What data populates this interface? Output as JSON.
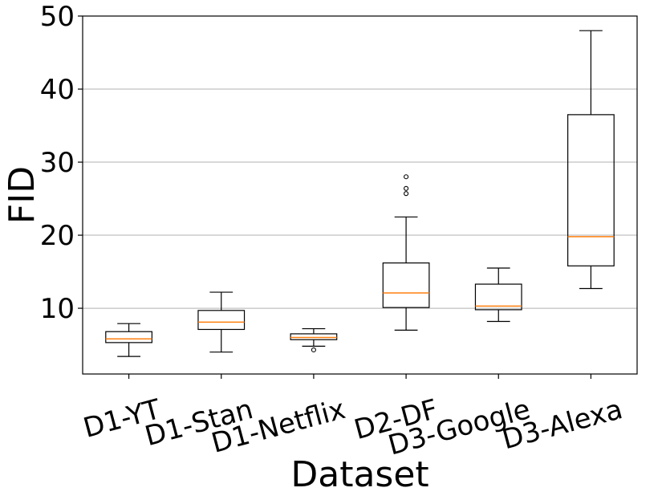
{
  "chart_data": {
    "type": "box",
    "title": "",
    "xlabel": "Dataset",
    "ylabel": "FID",
    "categories": [
      "D1-YT",
      "D1-Stan",
      "D1-Netflix",
      "D2-DF",
      "D3-Google",
      "D3-Alexa"
    ],
    "ylim": [
      1,
      50
    ],
    "yticks": [
      10,
      20,
      30,
      40,
      50
    ],
    "ytick_labels": [
      "10",
      "20",
      "30",
      "40",
      "50"
    ],
    "grid": "horizontal",
    "boxes": [
      {
        "category": "D1-YT",
        "whisker_low": 3.4,
        "q1": 5.3,
        "median": 5.8,
        "q3": 6.8,
        "whisker_high": 7.9,
        "outliers": []
      },
      {
        "category": "D1-Stan",
        "whisker_low": 4.0,
        "q1": 7.1,
        "median": 8.1,
        "q3": 9.7,
        "whisker_high": 12.2,
        "outliers": []
      },
      {
        "category": "D1-Netflix",
        "whisker_low": 4.8,
        "q1": 5.7,
        "median": 6.0,
        "q3": 6.5,
        "whisker_high": 7.2,
        "outliers": [
          4.3
        ]
      },
      {
        "category": "D2-DF",
        "whisker_low": 7.0,
        "q1": 10.1,
        "median": 12.1,
        "q3": 16.2,
        "whisker_high": 22.5,
        "outliers": [
          25.7,
          26.4,
          28.0
        ]
      },
      {
        "category": "D3-Google",
        "whisker_low": 8.2,
        "q1": 9.8,
        "median": 10.3,
        "q3": 13.3,
        "whisker_high": 15.5,
        "outliers": []
      },
      {
        "category": "D3-Alexa",
        "whisker_low": 12.7,
        "q1": 15.8,
        "median": 19.8,
        "q3": 36.5,
        "whisker_high": 48.0,
        "outliers": []
      }
    ],
    "colors": {
      "box": "#000000",
      "median": "#ff7f0e",
      "grid": "#b0b0b0",
      "background": "#ffffff"
    }
  }
}
